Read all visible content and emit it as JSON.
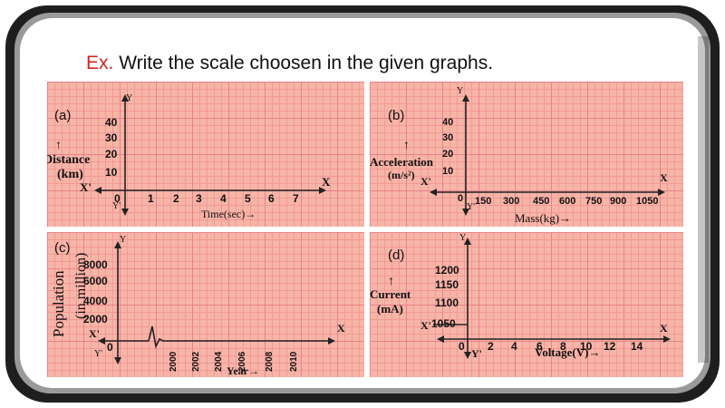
{
  "title": {
    "prefix": "Ex.",
    "text": "Write the scale choosen in the given graphs."
  },
  "graphs": [
    {
      "id": "a",
      "label": "(a)",
      "y_axis_label": "Distance",
      "y_axis_unit": "(km)",
      "x_axis_label": "Time(sec)→",
      "y_ticks": [
        "40",
        "30",
        "20",
        "10"
      ],
      "x_ticks": [
        "0",
        "1",
        "2",
        "3",
        "4",
        "5",
        "6",
        "7"
      ],
      "axis_names": {
        "x": "X",
        "x_neg": "X'",
        "y": "Y",
        "y_neg": "Y'"
      },
      "arrow": "↑"
    },
    {
      "id": "b",
      "label": "(b)",
      "y_axis_label": "Acceleration",
      "y_axis_unit": "(m/s²)",
      "x_axis_label": "Mass(kg)→",
      "y_ticks": [
        "40",
        "30",
        "20",
        "10"
      ],
      "x_ticks": [
        "0",
        "150",
        "300",
        "450",
        "600",
        "750",
        "900",
        "1050"
      ],
      "axis_names": {
        "x": "X",
        "x_neg": "X'",
        "y": "Y",
        "y_neg": "Y'"
      },
      "arrow": "↑"
    },
    {
      "id": "c",
      "label": "(c)",
      "y_axis_label": "Population",
      "y_axis_unit": "(in million)",
      "x_axis_label": "Year→",
      "y_ticks": [
        "8000",
        "6000",
        "4000",
        "2000"
      ],
      "x_ticks": [
        "0",
        "2000",
        "2002",
        "2004",
        "2006",
        "2008",
        "2010"
      ],
      "axis_names": {
        "x": "X",
        "x_neg": "X'",
        "y": "Y",
        "y_neg": "Y'"
      }
    },
    {
      "id": "d",
      "label": "(d)",
      "y_axis_label": "Current",
      "y_axis_unit": "(mA)",
      "x_axis_label": "Voltage(V)→",
      "y_ticks": [
        "1200",
        "1150",
        "1100",
        "1050"
      ],
      "x_ticks": [
        "0",
        "2",
        "4",
        "6",
        "8",
        "10",
        "12",
        "14"
      ],
      "axis_names": {
        "x": "X",
        "x_neg": "X'",
        "y": "Y",
        "y_neg": "Y'"
      },
      "arrow": "↑"
    }
  ],
  "colors": {
    "frame": "#1e1e1e",
    "prefix": "#d42020",
    "grid_bg": "#f7b5a8",
    "grid_major": "#e9828a"
  }
}
